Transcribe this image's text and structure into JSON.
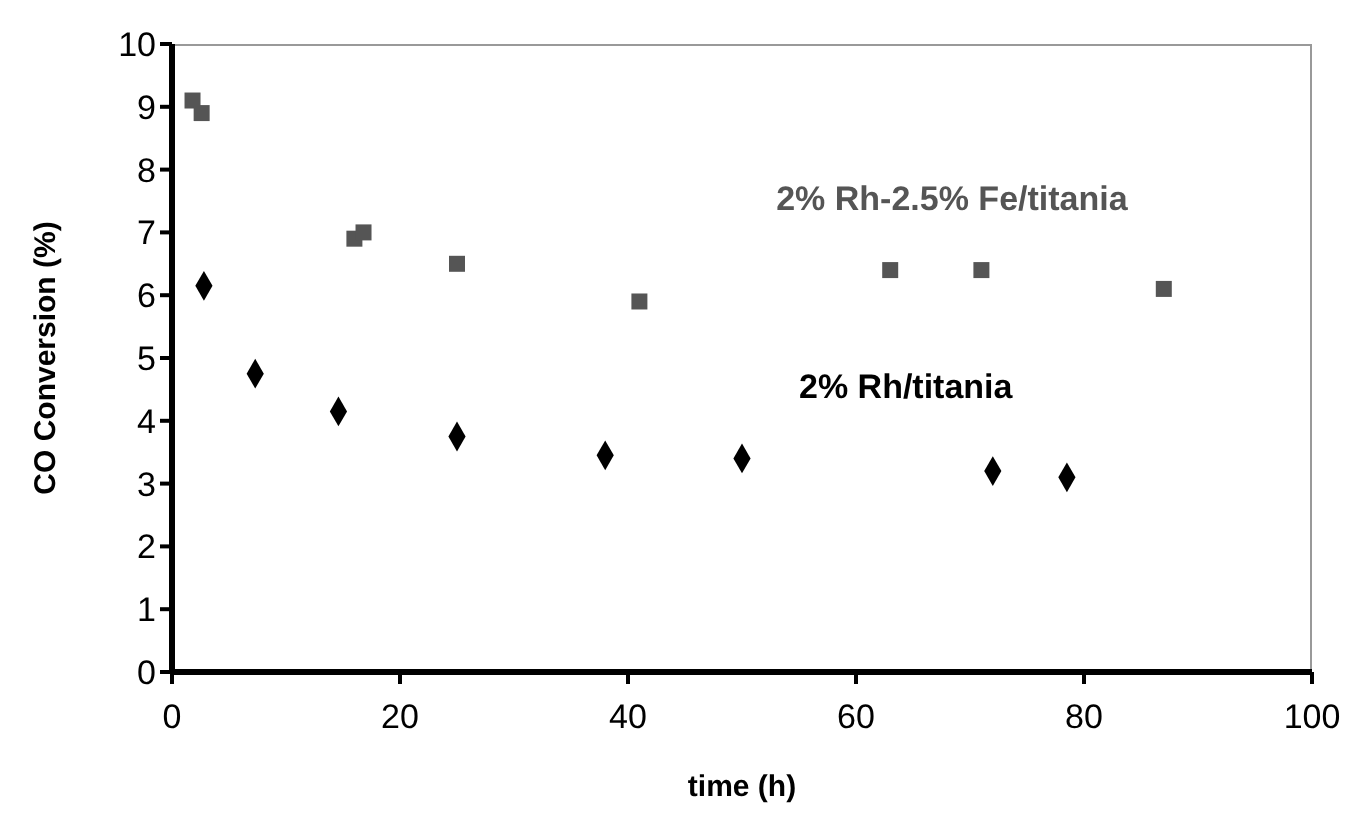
{
  "chart_data": {
    "type": "scatter",
    "xlabel": "time (h)",
    "ylabel": "CO Conversion (%)",
    "xlim": [
      0,
      100
    ],
    "xticks": [
      0,
      20,
      40,
      60,
      80,
      100
    ],
    "ylim": [
      0,
      10
    ],
    "yticks": [
      0,
      1,
      2,
      3,
      4,
      5,
      6,
      7,
      8,
      9,
      10
    ],
    "grid": false,
    "legend": false,
    "series": [
      {
        "name": "2% Rh-2.5% Fe/titania",
        "color": "#555555",
        "marker": "square",
        "x": [
          1.8,
          2.6,
          16,
          16.8,
          25,
          41,
          63,
          71,
          87
        ],
        "values": [
          9.1,
          8.9,
          6.9,
          7.0,
          6.5,
          5.9,
          6.4,
          6.4,
          6.1
        ]
      },
      {
        "name": "2% Rh/titania",
        "color": "#000000",
        "marker": "diamond",
        "x": [
          2.8,
          7.3,
          14.6,
          25,
          38,
          50,
          72,
          78.5
        ],
        "values": [
          6.15,
          4.75,
          4.15,
          3.75,
          3.45,
          3.4,
          3.2,
          3.1
        ]
      }
    ]
  }
}
